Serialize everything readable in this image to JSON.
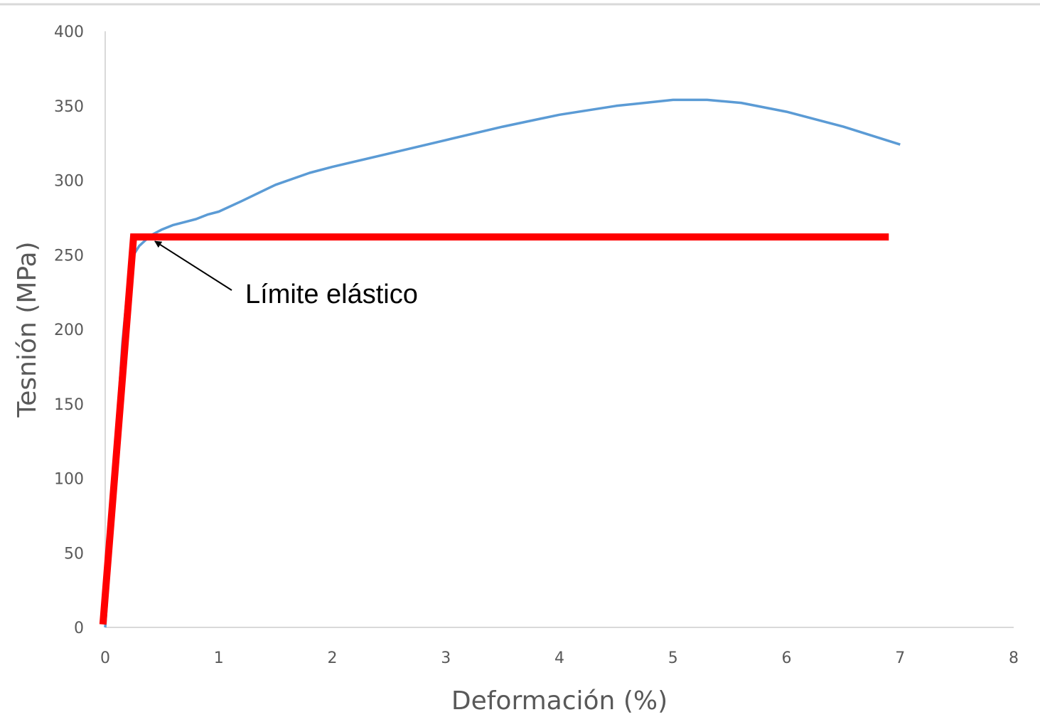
{
  "chart_data": {
    "type": "line",
    "xlabel": "Deformación (%)",
    "ylabel": "Tesnión (MPa)",
    "xlim": [
      0,
      8
    ],
    "ylim": [
      0,
      400
    ],
    "x_ticks": [
      "0",
      "1",
      "2",
      "3",
      "4",
      "5",
      "6",
      "7",
      "8"
    ],
    "y_ticks": [
      "0",
      "50",
      "100",
      "150",
      "200",
      "250",
      "300",
      "350",
      "400"
    ],
    "grid": false,
    "legend": "none",
    "series": [
      {
        "color": "#5b9bd5",
        "points": [
          [
            0,
            0
          ],
          [
            0.05,
            60
          ],
          [
            0.1,
            130
          ],
          [
            0.15,
            190
          ],
          [
            0.2,
            230
          ],
          [
            0.25,
            250
          ],
          [
            0.3,
            256
          ],
          [
            0.4,
            263
          ],
          [
            0.5,
            267
          ],
          [
            0.6,
            270
          ],
          [
            0.7,
            272
          ],
          [
            0.8,
            274
          ],
          [
            0.9,
            277
          ],
          [
            1.0,
            279
          ],
          [
            1.2,
            286
          ],
          [
            1.5,
            297
          ],
          [
            1.8,
            305
          ],
          [
            2.0,
            309
          ],
          [
            2.5,
            318
          ],
          [
            3.0,
            327
          ],
          [
            3.5,
            336
          ],
          [
            4.0,
            344
          ],
          [
            4.5,
            350
          ],
          [
            5.0,
            354
          ],
          [
            5.3,
            354
          ],
          [
            5.6,
            352
          ],
          [
            6.0,
            346
          ],
          [
            6.5,
            336
          ],
          [
            7.0,
            324
          ]
        ]
      },
      {
        "color": "#ff0000",
        "points": [
          [
            -0.02,
            2
          ],
          [
            0.25,
            262
          ],
          [
            6.9,
            262
          ]
        ]
      }
    ],
    "annotations": [
      {
        "text": "Límite elástico",
        "points_to": [
          0.4,
          261
        ]
      }
    ]
  }
}
